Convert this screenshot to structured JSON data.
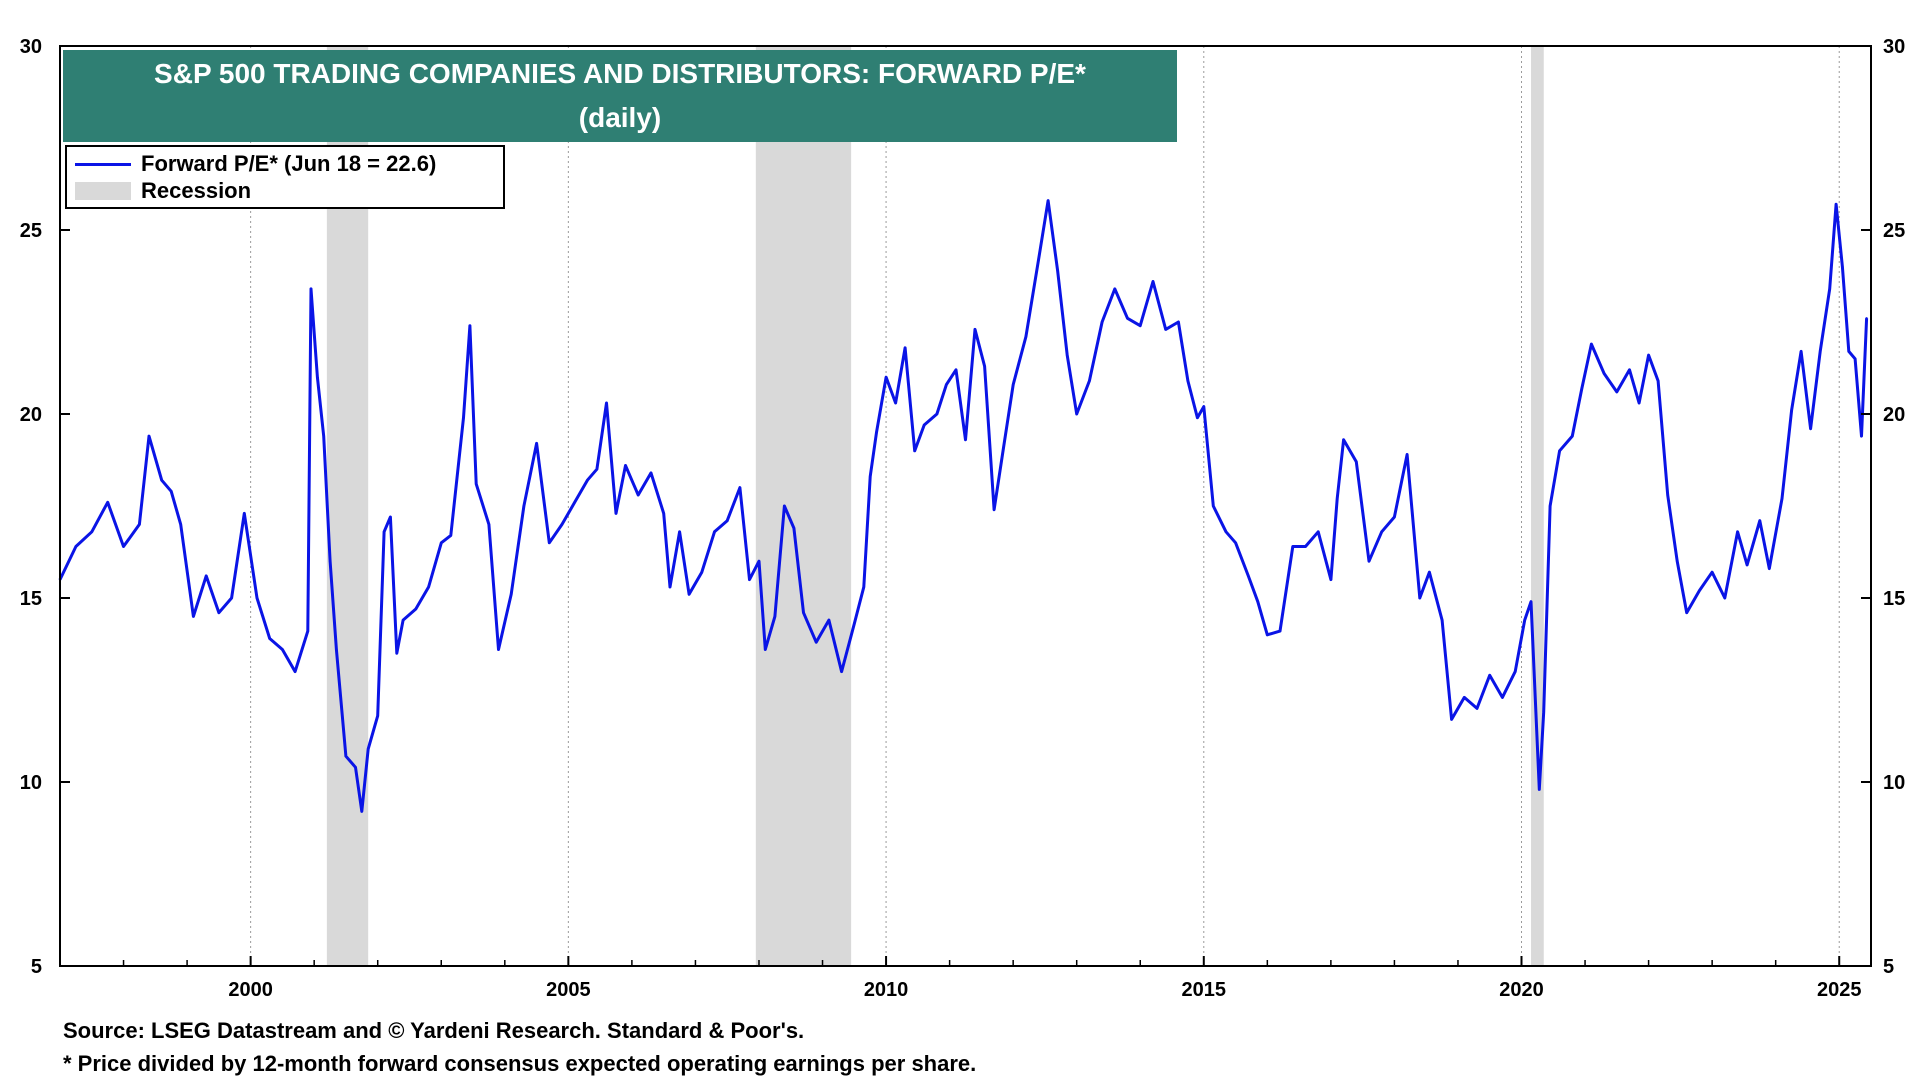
{
  "chart_data": {
    "type": "line",
    "title": "S&P 500 TRADING COMPANIES AND DISTRIBUTORS: FORWARD P/E*",
    "subtitle": "(daily)",
    "xlabel": "",
    "ylabel": "",
    "xlim": [
      1997.0,
      2025.5
    ],
    "ylim": [
      5,
      30
    ],
    "y_ticks": [
      5,
      10,
      15,
      20,
      25,
      30
    ],
    "y_tick_labels": [
      "5",
      "10",
      "15",
      "20",
      "25",
      "30"
    ],
    "x_ticks": [
      2000,
      2005,
      2010,
      2015,
      2020,
      2025
    ],
    "x_tick_labels": [
      "2000",
      "2005",
      "2010",
      "2015",
      "2020",
      "2025"
    ],
    "grid": true,
    "legend": [
      {
        "label": "Forward P/E* (Jun 18 = 22.6)",
        "color": "#0a14e6",
        "kind": "line"
      },
      {
        "label": "Recession",
        "color": "#d9d9d9",
        "kind": "patch"
      }
    ],
    "legend_placement": "top-left",
    "recessions": [
      [
        2001.2,
        2001.85
      ],
      [
        2007.95,
        2009.45
      ],
      [
        2020.15,
        2020.35
      ]
    ],
    "series": [
      {
        "color": "#0a14e6",
        "points": [
          [
            1997.0,
            15.5
          ],
          [
            1997.25,
            16.4
          ],
          [
            1997.5,
            16.8
          ],
          [
            1997.75,
            17.6
          ],
          [
            1998.0,
            16.4
          ],
          [
            1998.25,
            17.0
          ],
          [
            1998.4,
            19.4
          ],
          [
            1998.6,
            18.2
          ],
          [
            1998.75,
            17.9
          ],
          [
            1998.9,
            17.0
          ],
          [
            1999.1,
            14.5
          ],
          [
            1999.3,
            15.6
          ],
          [
            1999.5,
            14.6
          ],
          [
            1999.7,
            15.0
          ],
          [
            1999.9,
            17.3
          ],
          [
            2000.1,
            15.0
          ],
          [
            2000.3,
            13.9
          ],
          [
            2000.5,
            13.6
          ],
          [
            2000.7,
            13.0
          ],
          [
            2000.9,
            14.1
          ],
          [
            2000.95,
            23.4
          ],
          [
            2001.05,
            21.0
          ],
          [
            2001.15,
            19.4
          ],
          [
            2001.25,
            16.0
          ],
          [
            2001.35,
            13.6
          ],
          [
            2001.5,
            10.7
          ],
          [
            2001.65,
            10.4
          ],
          [
            2001.75,
            9.2
          ],
          [
            2001.85,
            10.9
          ],
          [
            2002.0,
            11.8
          ],
          [
            2002.1,
            16.8
          ],
          [
            2002.2,
            17.2
          ],
          [
            2002.3,
            13.5
          ],
          [
            2002.4,
            14.4
          ],
          [
            2002.6,
            14.7
          ],
          [
            2002.8,
            15.3
          ],
          [
            2003.0,
            16.5
          ],
          [
            2003.15,
            16.7
          ],
          [
            2003.35,
            19.9
          ],
          [
            2003.45,
            22.4
          ],
          [
            2003.55,
            18.1
          ],
          [
            2003.75,
            17.0
          ],
          [
            2003.9,
            13.6
          ],
          [
            2004.1,
            15.1
          ],
          [
            2004.3,
            17.5
          ],
          [
            2004.5,
            19.2
          ],
          [
            2004.7,
            16.5
          ],
          [
            2004.9,
            17.0
          ],
          [
            2005.1,
            17.6
          ],
          [
            2005.3,
            18.2
          ],
          [
            2005.45,
            18.5
          ],
          [
            2005.6,
            20.3
          ],
          [
            2005.75,
            17.3
          ],
          [
            2005.9,
            18.6
          ],
          [
            2006.1,
            17.8
          ],
          [
            2006.3,
            18.4
          ],
          [
            2006.5,
            17.3
          ],
          [
            2006.6,
            15.3
          ],
          [
            2006.75,
            16.8
          ],
          [
            2006.9,
            15.1
          ],
          [
            2007.1,
            15.7
          ],
          [
            2007.3,
            16.8
          ],
          [
            2007.5,
            17.1
          ],
          [
            2007.7,
            18.0
          ],
          [
            2007.85,
            15.5
          ],
          [
            2008.0,
            16.0
          ],
          [
            2008.1,
            13.6
          ],
          [
            2008.25,
            14.5
          ],
          [
            2008.4,
            17.5
          ],
          [
            2008.55,
            16.9
          ],
          [
            2008.7,
            14.6
          ],
          [
            2008.9,
            13.8
          ],
          [
            2009.1,
            14.4
          ],
          [
            2009.3,
            13.0
          ],
          [
            2009.5,
            14.3
          ],
          [
            2009.65,
            15.3
          ],
          [
            2009.75,
            18.3
          ],
          [
            2009.85,
            19.5
          ],
          [
            2010.0,
            21.0
          ],
          [
            2010.15,
            20.3
          ],
          [
            2010.3,
            21.8
          ],
          [
            2010.45,
            19.0
          ],
          [
            2010.6,
            19.7
          ],
          [
            2010.8,
            20.0
          ],
          [
            2010.95,
            20.8
          ],
          [
            2011.1,
            21.2
          ],
          [
            2011.25,
            19.3
          ],
          [
            2011.4,
            22.3
          ],
          [
            2011.55,
            21.3
          ],
          [
            2011.7,
            17.4
          ],
          [
            2011.85,
            19.1
          ],
          [
            2012.0,
            20.8
          ],
          [
            2012.2,
            22.1
          ],
          [
            2012.4,
            24.2
          ],
          [
            2012.55,
            25.8
          ],
          [
            2012.7,
            23.9
          ],
          [
            2012.85,
            21.6
          ],
          [
            2013.0,
            20.0
          ],
          [
            2013.2,
            20.9
          ],
          [
            2013.4,
            22.5
          ],
          [
            2013.6,
            23.4
          ],
          [
            2013.8,
            22.6
          ],
          [
            2014.0,
            22.4
          ],
          [
            2014.2,
            23.6
          ],
          [
            2014.4,
            22.3
          ],
          [
            2014.6,
            22.5
          ],
          [
            2014.75,
            20.9
          ],
          [
            2014.9,
            19.9
          ],
          [
            2015.0,
            20.2
          ],
          [
            2015.15,
            17.5
          ],
          [
            2015.35,
            16.8
          ],
          [
            2015.5,
            16.5
          ],
          [
            2015.7,
            15.6
          ],
          [
            2015.85,
            14.9
          ],
          [
            2016.0,
            14.0
          ],
          [
            2016.2,
            14.1
          ],
          [
            2016.4,
            16.4
          ],
          [
            2016.6,
            16.4
          ],
          [
            2016.8,
            16.8
          ],
          [
            2017.0,
            15.5
          ],
          [
            2017.1,
            17.7
          ],
          [
            2017.2,
            19.3
          ],
          [
            2017.4,
            18.7
          ],
          [
            2017.6,
            16.0
          ],
          [
            2017.8,
            16.8
          ],
          [
            2018.0,
            17.2
          ],
          [
            2018.2,
            18.9
          ],
          [
            2018.4,
            15.0
          ],
          [
            2018.55,
            15.7
          ],
          [
            2018.75,
            14.4
          ],
          [
            2018.9,
            11.7
          ],
          [
            2019.1,
            12.3
          ],
          [
            2019.3,
            12.0
          ],
          [
            2019.5,
            12.9
          ],
          [
            2019.7,
            12.3
          ],
          [
            2019.9,
            13.0
          ],
          [
            2020.05,
            14.4
          ],
          [
            2020.15,
            14.9
          ],
          [
            2020.28,
            9.8
          ],
          [
            2020.35,
            11.9
          ],
          [
            2020.45,
            17.5
          ],
          [
            2020.6,
            19.0
          ],
          [
            2020.8,
            19.4
          ],
          [
            2020.95,
            20.7
          ],
          [
            2021.1,
            21.9
          ],
          [
            2021.3,
            21.1
          ],
          [
            2021.5,
            20.6
          ],
          [
            2021.7,
            21.2
          ],
          [
            2021.85,
            20.3
          ],
          [
            2022.0,
            21.6
          ],
          [
            2022.15,
            20.9
          ],
          [
            2022.3,
            17.8
          ],
          [
            2022.45,
            16.0
          ],
          [
            2022.6,
            14.6
          ],
          [
            2022.8,
            15.2
          ],
          [
            2023.0,
            15.7
          ],
          [
            2023.2,
            15.0
          ],
          [
            2023.4,
            16.8
          ],
          [
            2023.55,
            15.9
          ],
          [
            2023.75,
            17.1
          ],
          [
            2023.9,
            15.8
          ],
          [
            2024.1,
            17.7
          ],
          [
            2024.25,
            20.1
          ],
          [
            2024.4,
            21.7
          ],
          [
            2024.55,
            19.6
          ],
          [
            2024.7,
            21.7
          ],
          [
            2024.85,
            23.4
          ],
          [
            2024.95,
            25.7
          ],
          [
            2025.05,
            24.0
          ],
          [
            2025.15,
            21.7
          ],
          [
            2025.25,
            21.5
          ],
          [
            2025.35,
            19.4
          ],
          [
            2025.43,
            22.6
          ]
        ]
      }
    ]
  },
  "header": {
    "title_line1": "S&P 500 TRADING COMPANIES AND DISTRIBUTORS: FORWARD P/E*",
    "title_line2": "(daily)"
  },
  "legend": {
    "line_label": "Forward P/E* (Jun 18 = 22.6)",
    "patch_label": "Recession"
  },
  "footer": {
    "source": "Source: LSEG Datastream and © Yardeni Research. Standard & Poor's.",
    "note": "* Price divided by 12-month forward consensus expected operating earnings per share."
  }
}
